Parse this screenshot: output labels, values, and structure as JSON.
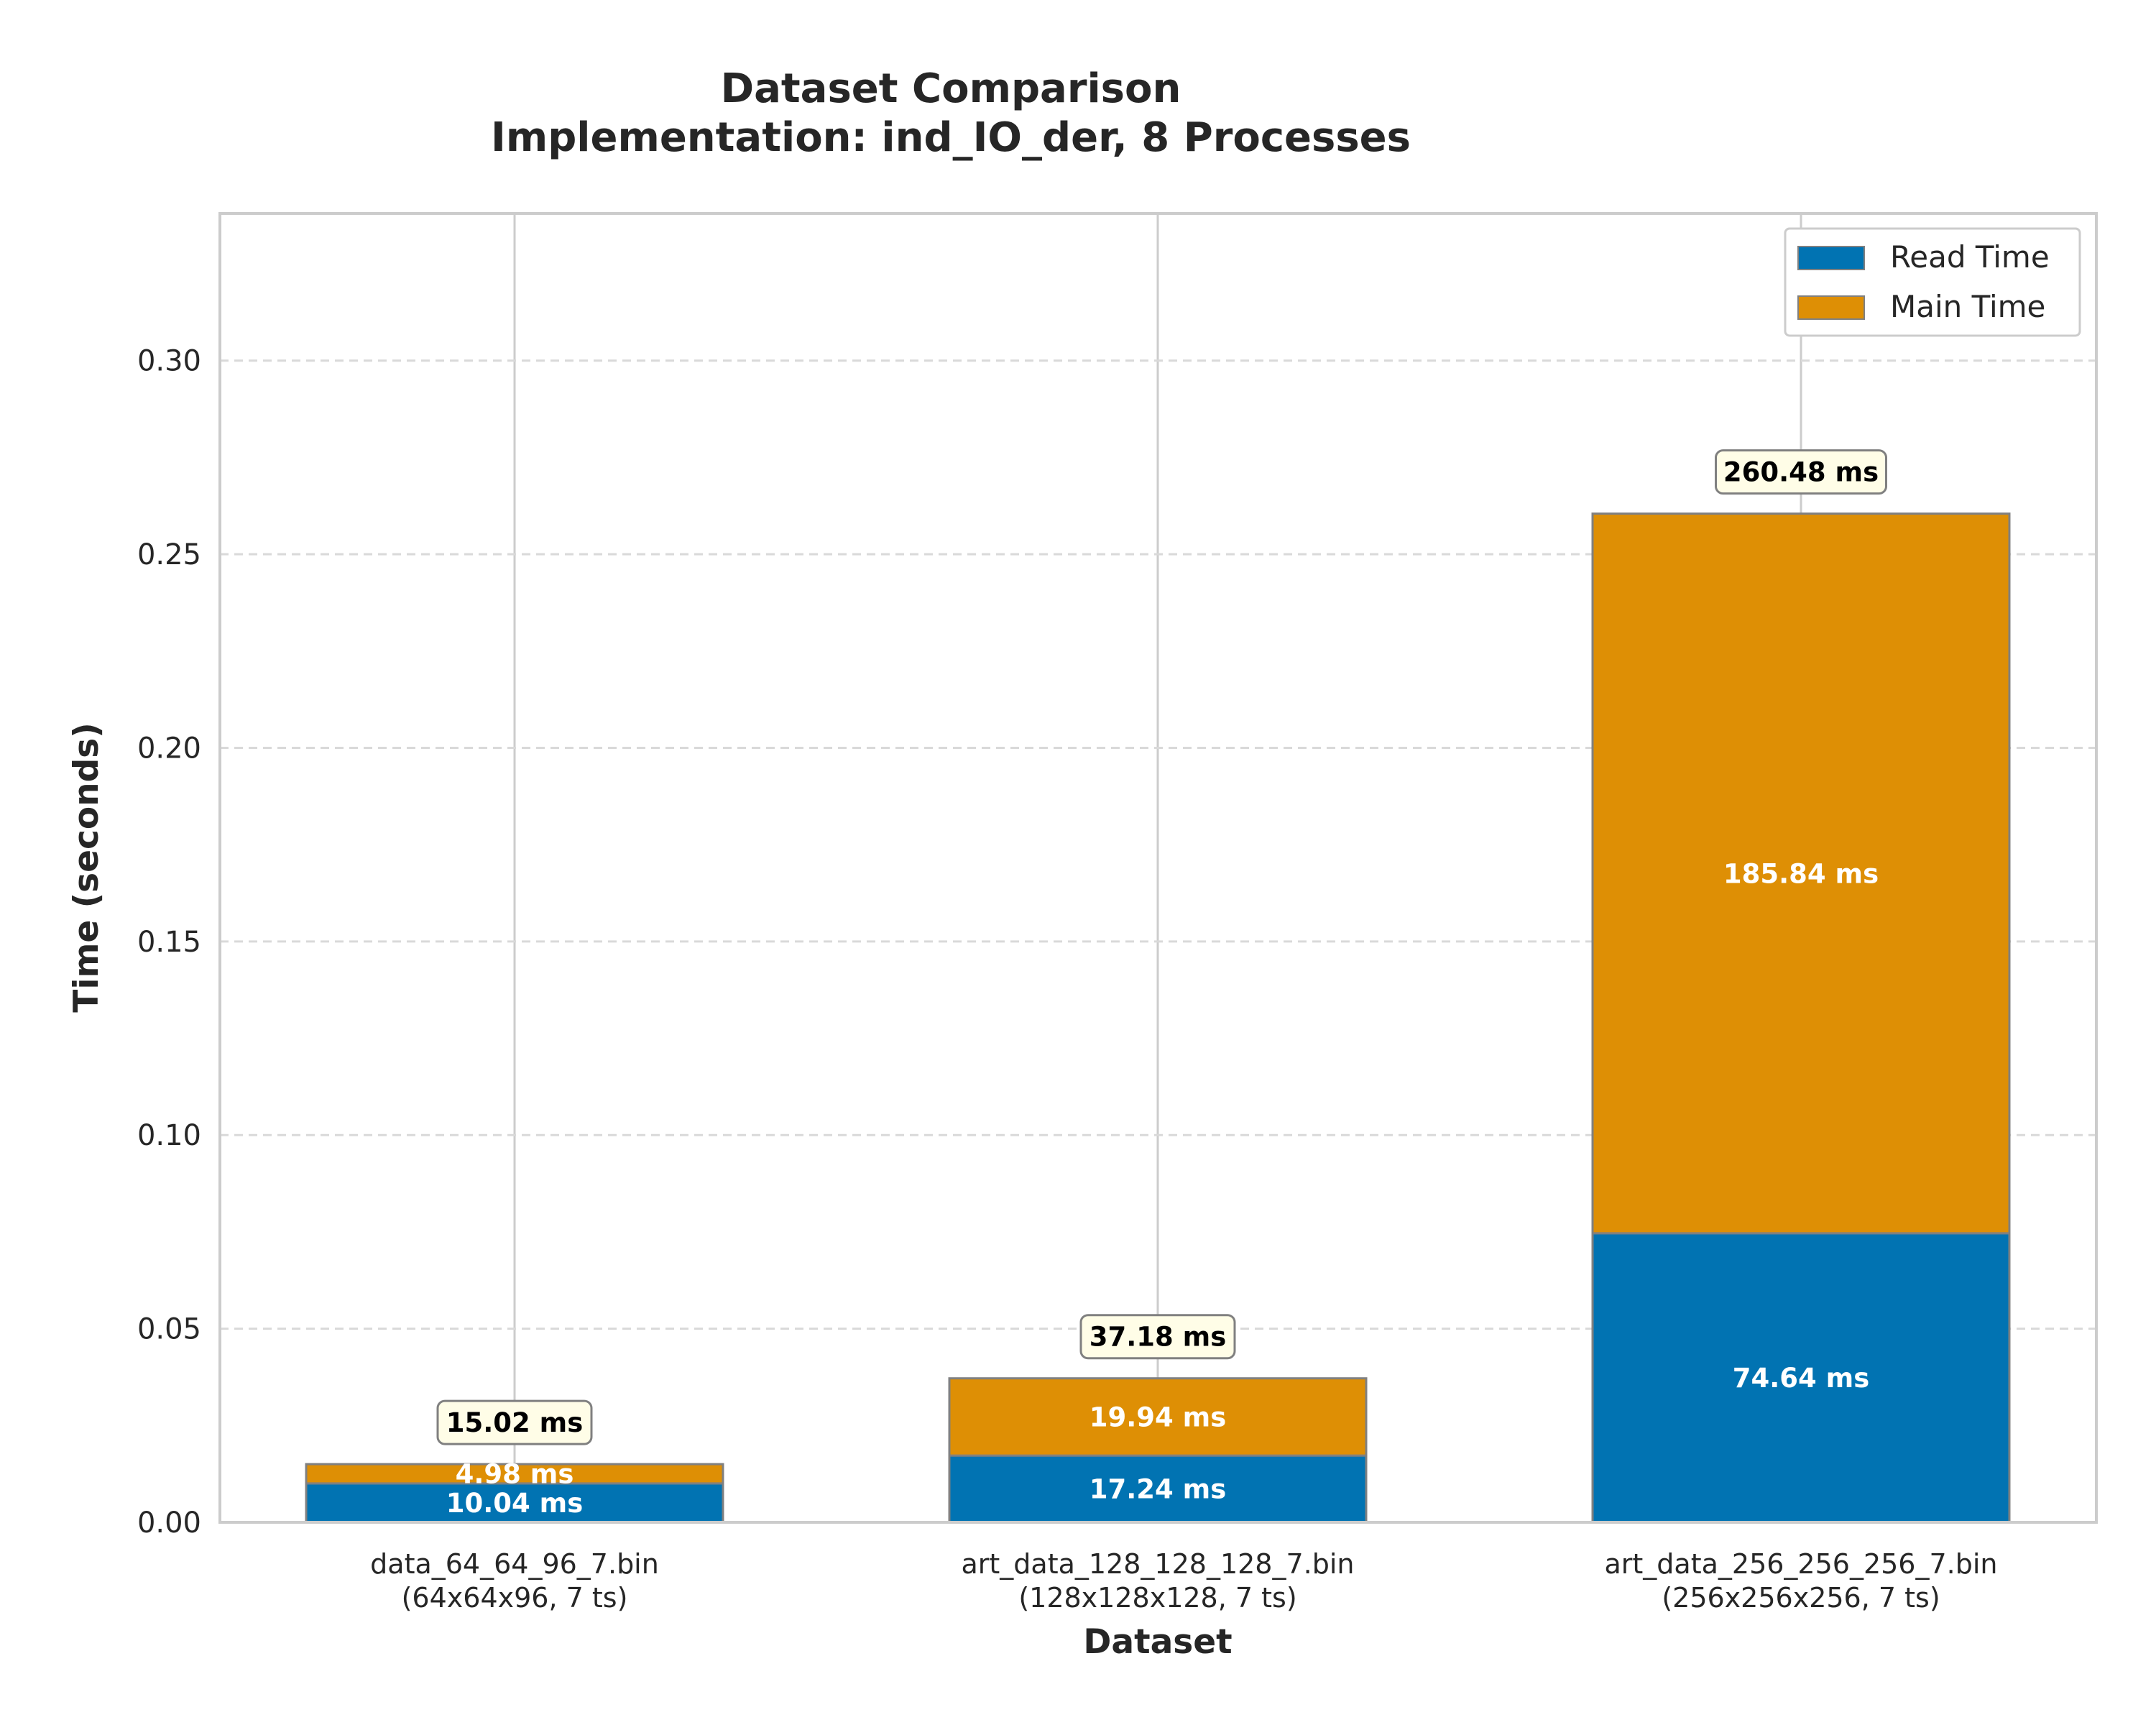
{
  "chart_data": {
    "type": "bar",
    "stacked": true,
    "title": "Dataset Comparison",
    "subtitle": "Implementation: ind_IO_der, 8 Processes",
    "xlabel": "Dataset",
    "ylabel": "Time (seconds)",
    "ylim": [
      0,
      0.338
    ],
    "yticks": [
      0.0,
      0.05,
      0.1,
      0.15,
      0.2,
      0.25,
      0.3
    ],
    "grid": "y dashed",
    "legend_position": "top-right",
    "categories": [
      [
        "data_64_64_96_7.bin",
        "(64x64x96, 7 ts)"
      ],
      [
        "art_data_128_128_128_7.bin",
        "(128x128x128, 7 ts)"
      ],
      [
        "art_data_256_256_256_7.bin",
        "(256x256x256, 7 ts)"
      ]
    ],
    "series": [
      {
        "name": "Read Time",
        "color": "#0173b2",
        "values": [
          0.01004,
          0.01724,
          0.07464
        ],
        "labels": [
          "10.04 ms",
          "17.24 ms",
          "74.64 ms"
        ]
      },
      {
        "name": "Main Time",
        "color": "#de8f05",
        "values": [
          0.00498,
          0.01994,
          0.18584
        ],
        "labels": [
          "4.98 ms",
          "19.94 ms",
          "185.84 ms"
        ]
      }
    ],
    "totals": [
      0.01502,
      0.03718,
      0.26048
    ],
    "total_labels": [
      "15.02 ms",
      "37.18 ms",
      "260.48 ms"
    ]
  }
}
